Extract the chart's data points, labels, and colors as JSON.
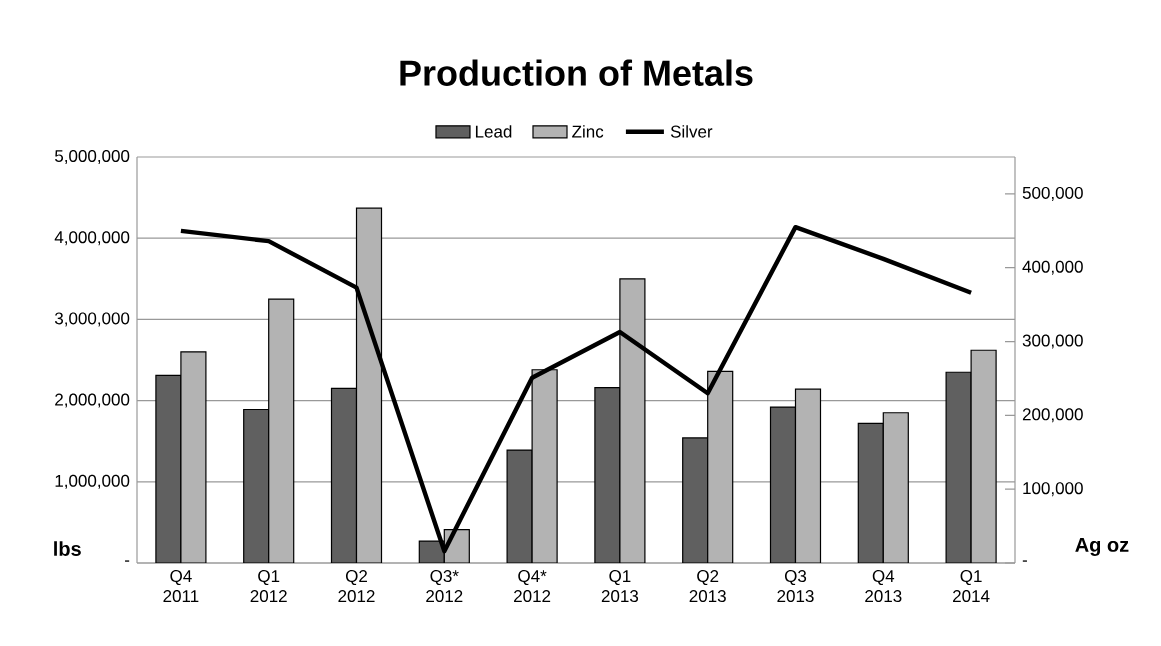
{
  "chart_data": {
    "type": "bar",
    "title": "Production of Metals",
    "categories": [
      "Q4 2011",
      "Q1 2012",
      "Q2 2012",
      "Q3* 2012",
      "Q4* 2012",
      "Q1 2013",
      "Q2 2013",
      "Q3 2013",
      "Q4 2013",
      "Q1 2014"
    ],
    "series": [
      {
        "name": "Lead",
        "color": "#606060",
        "values": [
          2310000,
          1890000,
          2150000,
          270000,
          1390000,
          2160000,
          1540000,
          1920000,
          1720000,
          2350000
        ]
      },
      {
        "name": "Zinc",
        "color": "#b3b3b3",
        "values": [
          2600000,
          3250000,
          4370000,
          410000,
          2380000,
          3500000,
          2360000,
          2140000,
          1850000,
          2620000
        ]
      },
      {
        "name": "Silver",
        "type": "line",
        "axis": "y2",
        "color": "#000000",
        "values": [
          450000,
          436000,
          373000,
          16000,
          251000,
          313000,
          230000,
          455000,
          412000,
          366000
        ]
      }
    ],
    "ylabel": "lbs",
    "y2label": "Ag oz",
    "ylim": [
      0,
      5000000
    ],
    "yticks": [
      {
        "value": 0,
        "label": "-"
      },
      {
        "value": 1000000,
        "label": "1,000,000"
      },
      {
        "value": 2000000,
        "label": "2,000,000"
      },
      {
        "value": 3000000,
        "label": "3,000,000"
      },
      {
        "value": 4000000,
        "label": "4,000,000"
      },
      {
        "value": 5000000,
        "label": "5,000,000"
      }
    ],
    "y2lim": [
      0,
      550000
    ],
    "y2ticks": [
      {
        "value": 0,
        "label": "-"
      },
      {
        "value": 100000,
        "label": "100,000"
      },
      {
        "value": 200000,
        "label": "200,000"
      },
      {
        "value": 300000,
        "label": "300,000"
      },
      {
        "value": 400000,
        "label": "400,000"
      },
      {
        "value": 500000,
        "label": "500,000"
      }
    ],
    "grid": "y",
    "legend": "top"
  }
}
